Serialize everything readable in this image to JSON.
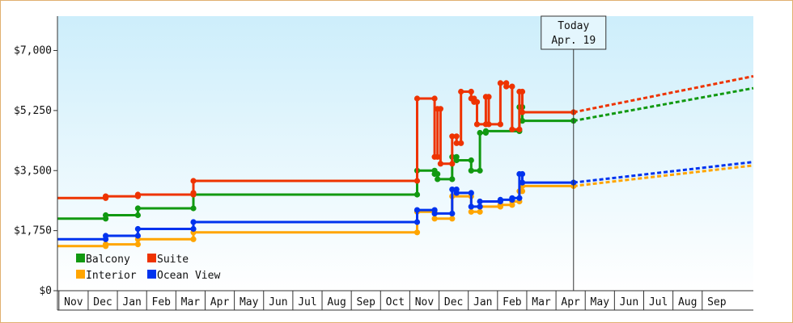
{
  "chart_data": {
    "type": "line",
    "title": "",
    "xlabel": "",
    "ylabel": "",
    "ylim": [
      0,
      8000
    ],
    "yticks": [
      {
        "value": 0,
        "label": "$0"
      },
      {
        "value": 1750,
        "label": "$1,750"
      },
      {
        "value": 3500,
        "label": "$3,500"
      },
      {
        "value": 5250,
        "label": "$5,250"
      },
      {
        "value": 7000,
        "label": "$7,000"
      }
    ],
    "xticks": [
      {
        "month": 0,
        "label": "Nov"
      },
      {
        "month": 1,
        "label": "Dec"
      },
      {
        "month": 2,
        "label": "Jan"
      },
      {
        "month": 3,
        "label": "Feb"
      },
      {
        "month": 4,
        "label": "Mar"
      },
      {
        "month": 5,
        "label": "Apr"
      },
      {
        "month": 6,
        "label": "May"
      },
      {
        "month": 7,
        "label": "Jun"
      },
      {
        "month": 8,
        "label": "Jul"
      },
      {
        "month": 9,
        "label": "Aug"
      },
      {
        "month": 10,
        "label": "Sep"
      },
      {
        "month": 11,
        "label": "Oct"
      },
      {
        "month": 12,
        "label": "Nov"
      },
      {
        "month": 13,
        "label": "Dec"
      },
      {
        "month": 14,
        "label": "Jan"
      },
      {
        "month": 15,
        "label": "Feb"
      },
      {
        "month": 16,
        "label": "Mar"
      },
      {
        "month": 17,
        "label": "Apr"
      },
      {
        "month": 18,
        "label": "May"
      },
      {
        "month": 19,
        "label": "Jun"
      },
      {
        "month": 20,
        "label": "Jul"
      },
      {
        "month": 21,
        "label": "Aug"
      },
      {
        "month": 22,
        "label": "Sep"
      }
    ],
    "x_range": [
      -0.05,
      23.75
    ],
    "today": {
      "month": 17.6,
      "label_line1": "Today",
      "label_line2": "Apr. 19"
    },
    "legend": {
      "placement": "bottom-left"
    },
    "series": [
      {
        "name": "Balcony",
        "color": "#119911",
        "points": [
          [
            -0.05,
            2100
          ],
          [
            1.6,
            2100
          ],
          [
            1.6,
            2200
          ],
          [
            2.7,
            2200
          ],
          [
            2.7,
            2400
          ],
          [
            4.6,
            2400
          ],
          [
            4.6,
            2800
          ],
          [
            12.25,
            2800
          ],
          [
            12.25,
            3500
          ],
          [
            12.85,
            3500
          ],
          [
            12.85,
            3400
          ],
          [
            12.95,
            3400
          ],
          [
            12.95,
            3250
          ],
          [
            13.45,
            3250
          ],
          [
            13.45,
            3900
          ],
          [
            13.6,
            3900
          ],
          [
            13.6,
            3800
          ],
          [
            14.1,
            3800
          ],
          [
            14.1,
            3500
          ],
          [
            14.4,
            3500
          ],
          [
            14.4,
            4600
          ],
          [
            14.6,
            4600
          ],
          [
            14.6,
            4650
          ],
          [
            15.75,
            4650
          ],
          [
            15.75,
            5350
          ],
          [
            15.85,
            5350
          ],
          [
            15.85,
            4950
          ],
          [
            17.6,
            4950
          ]
        ],
        "forecast": [
          [
            17.6,
            4950
          ],
          [
            23.75,
            5900
          ]
        ]
      },
      {
        "name": "Suite",
        "color": "#ee3300",
        "points": [
          [
            -0.05,
            2700
          ],
          [
            1.6,
            2700
          ],
          [
            1.6,
            2750
          ],
          [
            2.7,
            2750
          ],
          [
            2.7,
            2800
          ],
          [
            4.6,
            2800
          ],
          [
            4.6,
            2850
          ],
          [
            4.6,
            3200
          ],
          [
            12.25,
            3200
          ],
          [
            12.25,
            5600
          ],
          [
            12.85,
            5600
          ],
          [
            12.85,
            3900
          ],
          [
            12.95,
            3900
          ],
          [
            12.95,
            5300
          ],
          [
            13.05,
            5300
          ],
          [
            13.05,
            3700
          ],
          [
            13.45,
            3700
          ],
          [
            13.45,
            4500
          ],
          [
            13.6,
            4500
          ],
          [
            13.6,
            4300
          ],
          [
            13.75,
            4300
          ],
          [
            13.75,
            5800
          ],
          [
            14.1,
            5800
          ],
          [
            14.1,
            5600
          ],
          [
            14.2,
            5600
          ],
          [
            14.2,
            5500
          ],
          [
            14.3,
            5500
          ],
          [
            14.3,
            4850
          ],
          [
            14.6,
            4850
          ],
          [
            14.6,
            5650
          ],
          [
            14.7,
            5650
          ],
          [
            14.7,
            4850
          ],
          [
            15.1,
            4850
          ],
          [
            15.1,
            6050
          ],
          [
            15.3,
            6050
          ],
          [
            15.3,
            5950
          ],
          [
            15.5,
            5950
          ],
          [
            15.5,
            4700
          ],
          [
            15.75,
            4700
          ],
          [
            15.75,
            5800
          ],
          [
            15.85,
            5800
          ],
          [
            15.85,
            5200
          ],
          [
            17.6,
            5200
          ]
        ],
        "forecast": [
          [
            17.6,
            5200
          ],
          [
            23.75,
            6250
          ]
        ]
      },
      {
        "name": "Interior",
        "color": "#ffa500",
        "points": [
          [
            -0.05,
            1300
          ],
          [
            1.6,
            1300
          ],
          [
            1.6,
            1350
          ],
          [
            2.7,
            1350
          ],
          [
            2.7,
            1500
          ],
          [
            4.6,
            1500
          ],
          [
            4.6,
            1700
          ],
          [
            12.25,
            1700
          ],
          [
            12.25,
            2300
          ],
          [
            12.85,
            2300
          ],
          [
            12.85,
            2100
          ],
          [
            13.45,
            2100
          ],
          [
            13.45,
            2750
          ],
          [
            14.1,
            2750
          ],
          [
            14.1,
            2300
          ],
          [
            14.4,
            2300
          ],
          [
            14.4,
            2450
          ],
          [
            15.1,
            2450
          ],
          [
            15.1,
            2500
          ],
          [
            15.5,
            2500
          ],
          [
            15.5,
            2600
          ],
          [
            15.75,
            2600
          ],
          [
            15.75,
            2900
          ],
          [
            15.85,
            2900
          ],
          [
            15.85,
            3050
          ],
          [
            17.6,
            3050
          ]
        ],
        "forecast": [
          [
            17.6,
            3050
          ],
          [
            23.75,
            3650
          ]
        ]
      },
      {
        "name": "Ocean View",
        "color": "#0033ee",
        "points": [
          [
            -0.05,
            1500
          ],
          [
            1.6,
            1500
          ],
          [
            1.6,
            1600
          ],
          [
            2.7,
            1600
          ],
          [
            2.7,
            1800
          ],
          [
            4.6,
            1800
          ],
          [
            4.6,
            2000
          ],
          [
            12.25,
            2000
          ],
          [
            12.25,
            2350
          ],
          [
            12.85,
            2350
          ],
          [
            12.85,
            2250
          ],
          [
            13.45,
            2250
          ],
          [
            13.45,
            2950
          ],
          [
            13.6,
            2950
          ],
          [
            13.6,
            2850
          ],
          [
            14.1,
            2850
          ],
          [
            14.1,
            2450
          ],
          [
            14.4,
            2450
          ],
          [
            14.4,
            2600
          ],
          [
            15.1,
            2600
          ],
          [
            15.1,
            2650
          ],
          [
            15.5,
            2650
          ],
          [
            15.5,
            2700
          ],
          [
            15.75,
            2700
          ],
          [
            15.75,
            3400
          ],
          [
            15.85,
            3400
          ],
          [
            15.85,
            3150
          ],
          [
            17.6,
            3150
          ]
        ],
        "forecast": [
          [
            17.6,
            3150
          ],
          [
            23.75,
            3750
          ]
        ]
      }
    ]
  }
}
